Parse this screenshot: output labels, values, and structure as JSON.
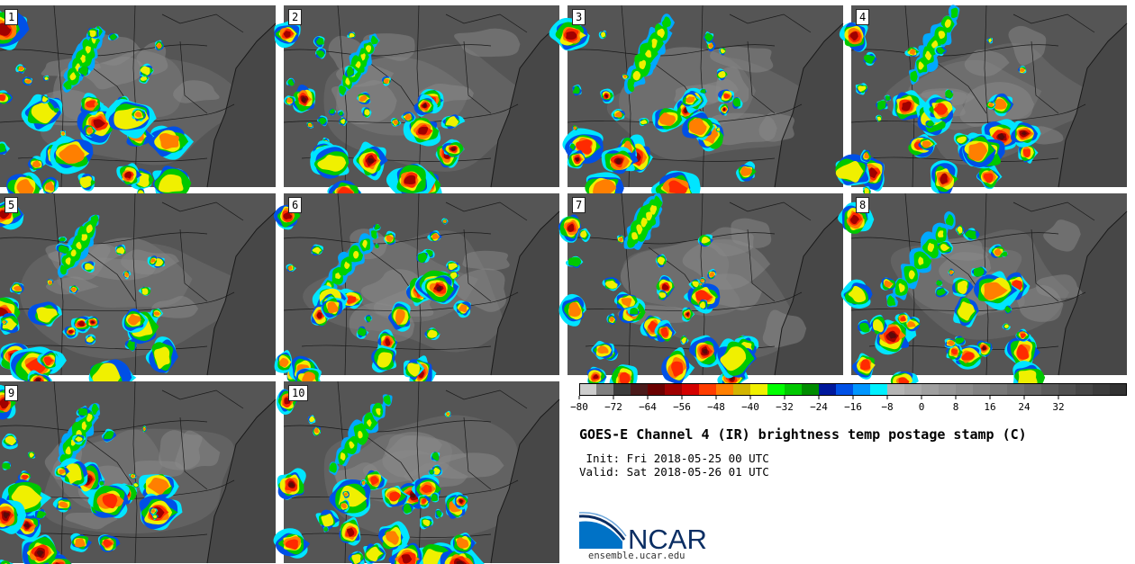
{
  "panels": [
    {
      "label": "1"
    },
    {
      "label": "2"
    },
    {
      "label": "3"
    },
    {
      "label": "4"
    },
    {
      "label": "5"
    },
    {
      "label": "6"
    },
    {
      "label": "7"
    },
    {
      "label": "8"
    },
    {
      "label": "9"
    },
    {
      "label": "10"
    }
  ],
  "colorbar": {
    "tick_labels": [
      "−80",
      "−72",
      "−64",
      "−56",
      "−48",
      "−40",
      "−32",
      "−24",
      "−16",
      "−8",
      "0",
      "8",
      "16",
      "24",
      "32"
    ],
    "colors": [
      "#cdcdcd",
      "#7f7f7f",
      "#3c3c3c",
      "#4a1a1a",
      "#6b0000",
      "#a00000",
      "#d40000",
      "#ff3c00",
      "#ff7f00",
      "#d2b400",
      "#f0f000",
      "#00ff00",
      "#00c800",
      "#008c00",
      "#00189c",
      "#0050e6",
      "#0096ff",
      "#00f0ff",
      "#b4b4b4",
      "#aaaaaa",
      "#a0a0a0",
      "#969696",
      "#8c8c8c",
      "#828282",
      "#787878",
      "#6e6e6e",
      "#646464",
      "#5a5a5a",
      "#505050",
      "#464646",
      "#3c3c3c",
      "#323232"
    ]
  },
  "title": "GOES-E Channel 4 (IR) brightness temp postage stamp (C)",
  "init_line": " Init: Fri 2018-05-25 00 UTC",
  "valid_line": "Valid: Sat 2018-05-26 01 UTC",
  "logo_text": "NCAR",
  "url": "ensemble.ucar.edu"
}
